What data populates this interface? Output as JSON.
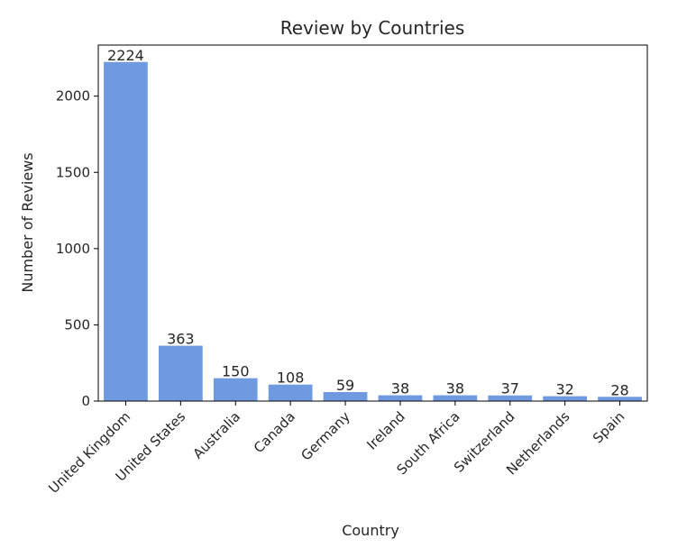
{
  "chart_data": {
    "type": "bar",
    "title": "Review by Countries",
    "xlabel": "Country",
    "ylabel": "Number of Reviews",
    "categories": [
      "United Kingdom",
      "United States",
      "Australia",
      "Canada",
      "Germany",
      "Ireland",
      "South Africa",
      "Switzerland",
      "Netherlands",
      "Spain"
    ],
    "values": [
      2224,
      363,
      150,
      108,
      59,
      38,
      38,
      37,
      32,
      28
    ],
    "data_labels": [
      "2224",
      "363",
      "150",
      "108",
      "59",
      "38",
      "38",
      "37",
      "32",
      "28"
    ],
    "yticks": [
      0,
      500,
      1000,
      1500,
      2000
    ],
    "ytick_labels": [
      "0",
      "500",
      "1000",
      "1500",
      "2000"
    ],
    "ylim": [
      0,
      2335
    ],
    "grid": false,
    "bar_color": "#6f9ae0"
  }
}
